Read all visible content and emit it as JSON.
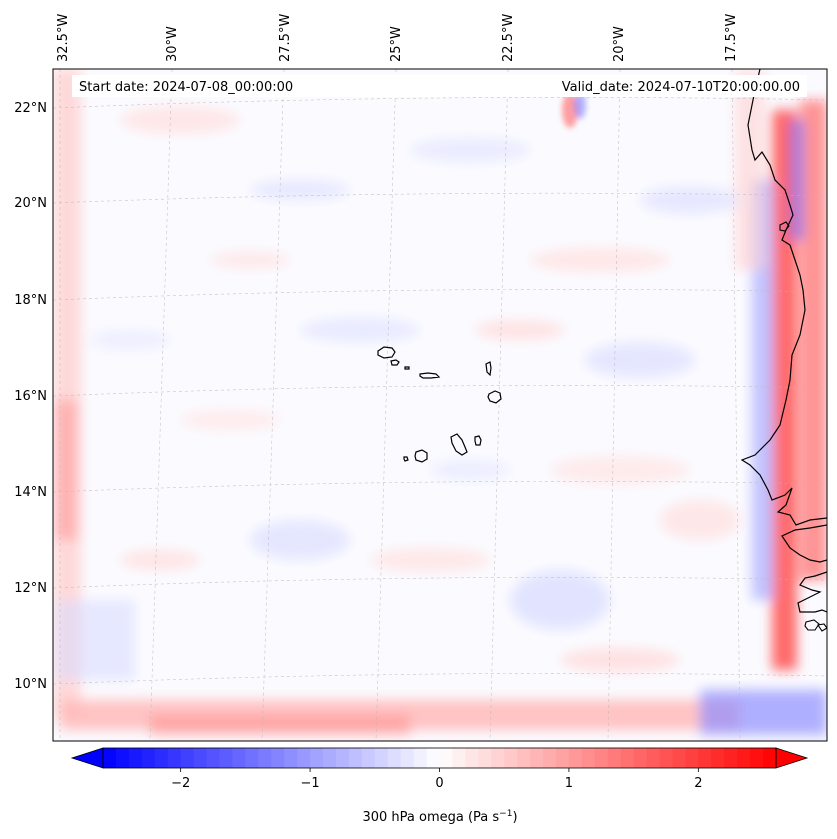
{
  "map": {
    "title_left": "Start date: 2024-07-08_00:00:00",
    "title_right": "Valid_date: 2024-07-10T20:00:00.00",
    "lon_labels": [
      "32.5°W",
      "30°W",
      "27.5°W",
      "25°W",
      "22.5°W",
      "20°W",
      "17.5°W"
    ],
    "lat_labels": [
      "22°N",
      "20°N",
      "18°N",
      "16°N",
      "14°N",
      "12°N",
      "10°N"
    ],
    "lon_values": [
      -32.5,
      -30,
      -27.5,
      -25,
      -22.5,
      -20,
      -17.5
    ],
    "lat_values": [
      22,
      20,
      18,
      16,
      14,
      12,
      10
    ],
    "features": [
      "Cape Verde islands",
      "West African coastline"
    ]
  },
  "colorbar": {
    "label": "300 hPa omega (Pa s",
    "label_sup": "−1",
    "label_close": ")",
    "vmin": -2.6,
    "vmax": 2.6,
    "ticks": [
      -2,
      -1,
      0,
      1,
      2
    ],
    "tick_labels": [
      "−2",
      "−1",
      "0",
      "1",
      "2"
    ],
    "neg_color": "#0000ff",
    "mid_color": "#ffffff",
    "pos_color": "#ff0000"
  }
}
